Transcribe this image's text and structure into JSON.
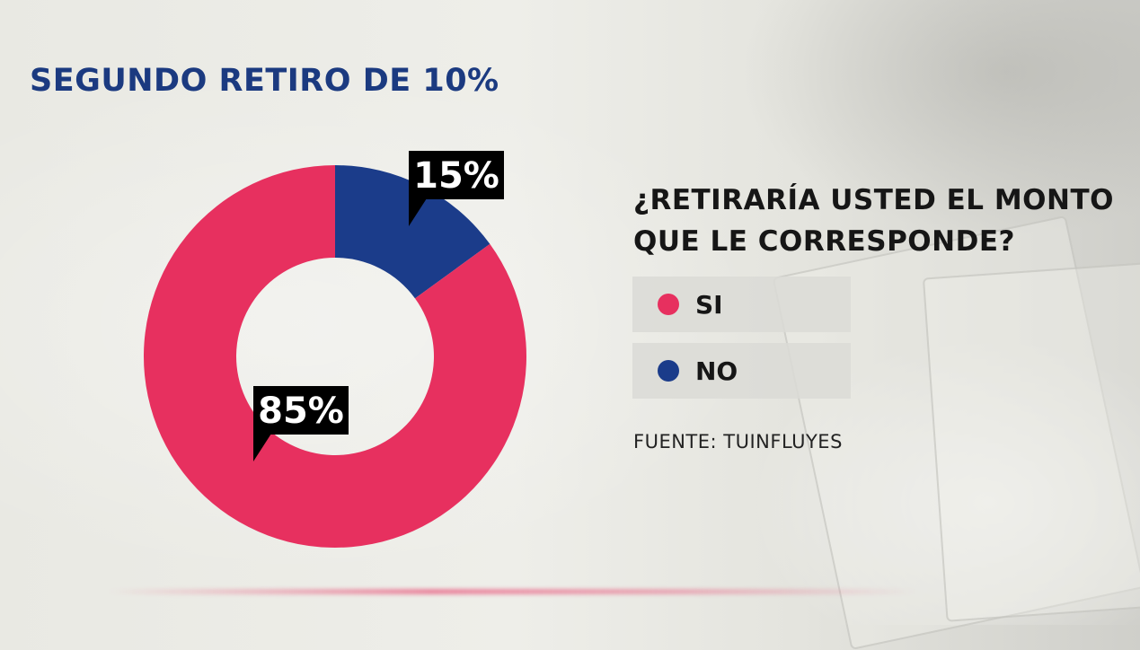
{
  "title": "SEGUNDO RETIRO DE 10%",
  "question": "¿RETIRARÍA USTED EL MONTO QUE LE CORRESPONDE?",
  "source": "FUENTE: TUINFLUYES",
  "colors": {
    "si": "#e7305f",
    "no": "#1b3c8a",
    "title": "#1b3a80",
    "callout": "#000000"
  },
  "chart_data": {
    "type": "pie",
    "title": "SEGUNDO RETIRO DE 10%",
    "style": "donut",
    "series": [
      {
        "name": "NO",
        "value": 15,
        "label": "15%"
      },
      {
        "name": "SI",
        "value": 85,
        "label": "85%"
      }
    ],
    "legend": [
      {
        "name": "SI"
      },
      {
        "name": "NO"
      }
    ],
    "legend_position": "right"
  }
}
